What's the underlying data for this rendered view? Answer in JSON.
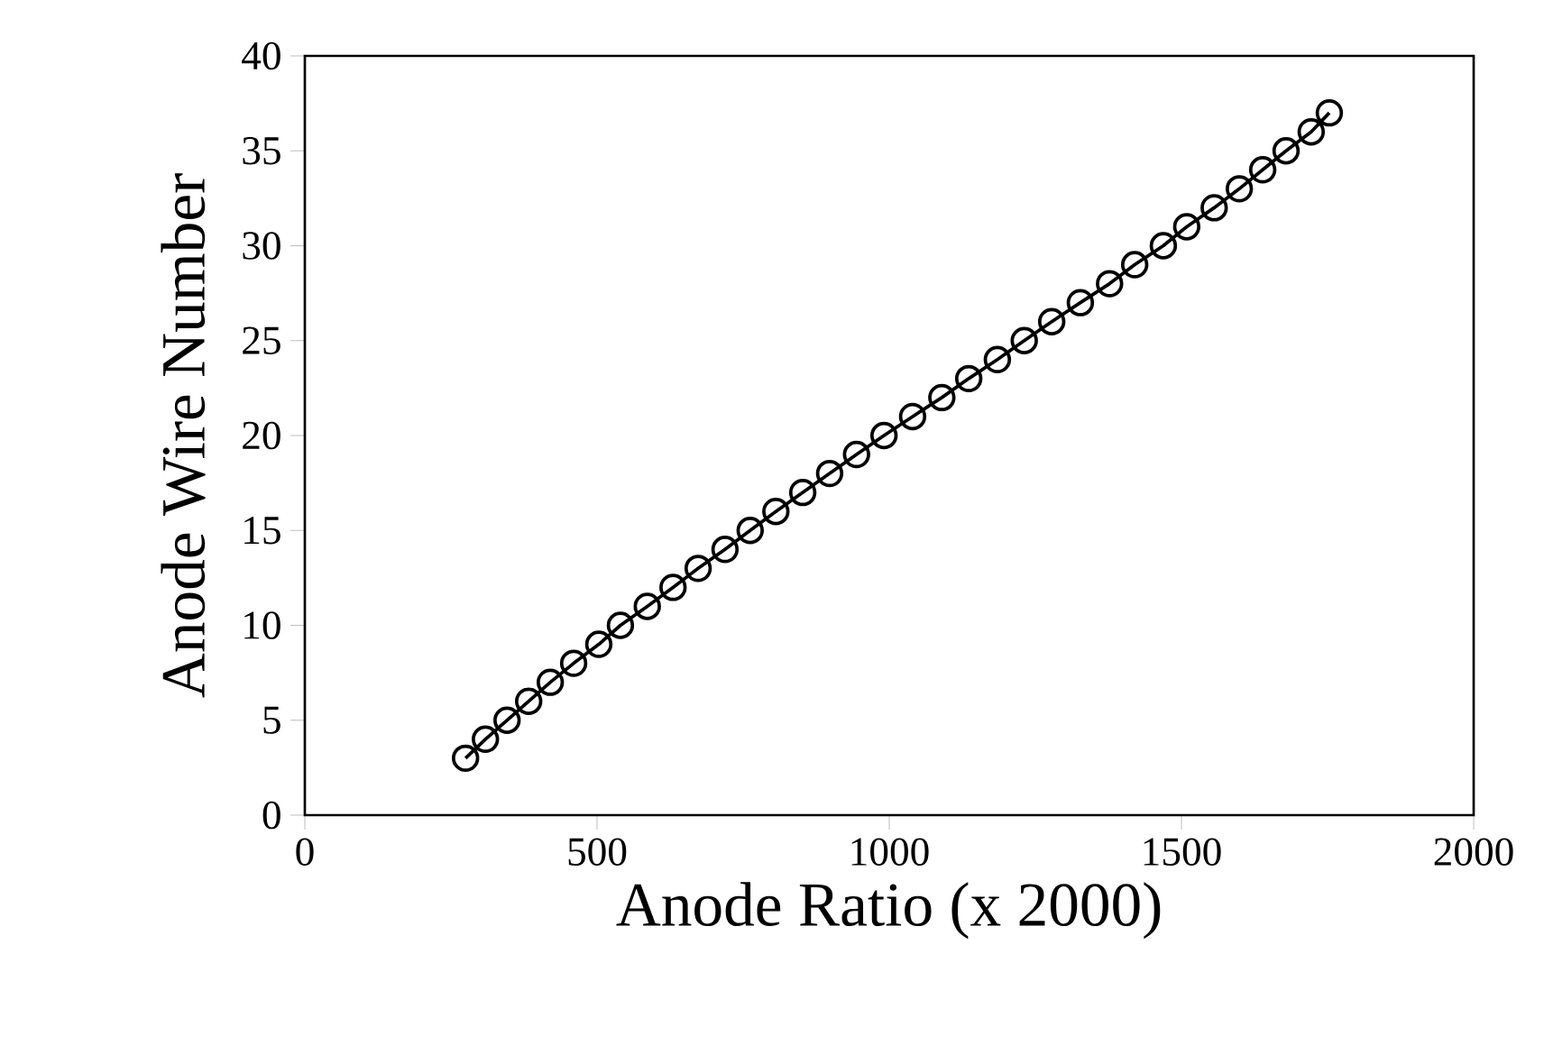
{
  "chart_data": {
    "type": "line",
    "xlabel": "Anode Ratio (x 2000)",
    "ylabel": "Anode Wire Number",
    "x": [
      275,
      309,
      346,
      383,
      420,
      460,
      503,
      540,
      586,
      630,
      673,
      719,
      762,
      806,
      852,
      898,
      944,
      991,
      1040,
      1090,
      1136,
      1185,
      1231,
      1278,
      1327,
      1377,
      1420,
      1469,
      1509,
      1556,
      1599,
      1639,
      1679,
      1722,
      1753
    ],
    "series": [
      {
        "color": "#000000",
        "values": [
          3,
          4,
          5,
          6,
          7,
          8,
          9,
          10,
          11,
          12,
          13,
          14,
          15,
          16,
          17,
          18,
          19,
          20,
          21,
          22,
          23,
          24,
          25,
          26,
          27,
          28,
          29,
          30,
          31,
          32,
          33,
          34,
          35,
          36,
          37
        ]
      }
    ],
    "xlim": [
      0,
      2000
    ],
    "ylim": [
      0,
      40
    ],
    "xticks": [
      0,
      500,
      1000,
      1500,
      2000
    ],
    "yticks": [
      0,
      5,
      10,
      15,
      20,
      25,
      30,
      35,
      40
    ],
    "marker": "circle",
    "line_style": "solid"
  }
}
